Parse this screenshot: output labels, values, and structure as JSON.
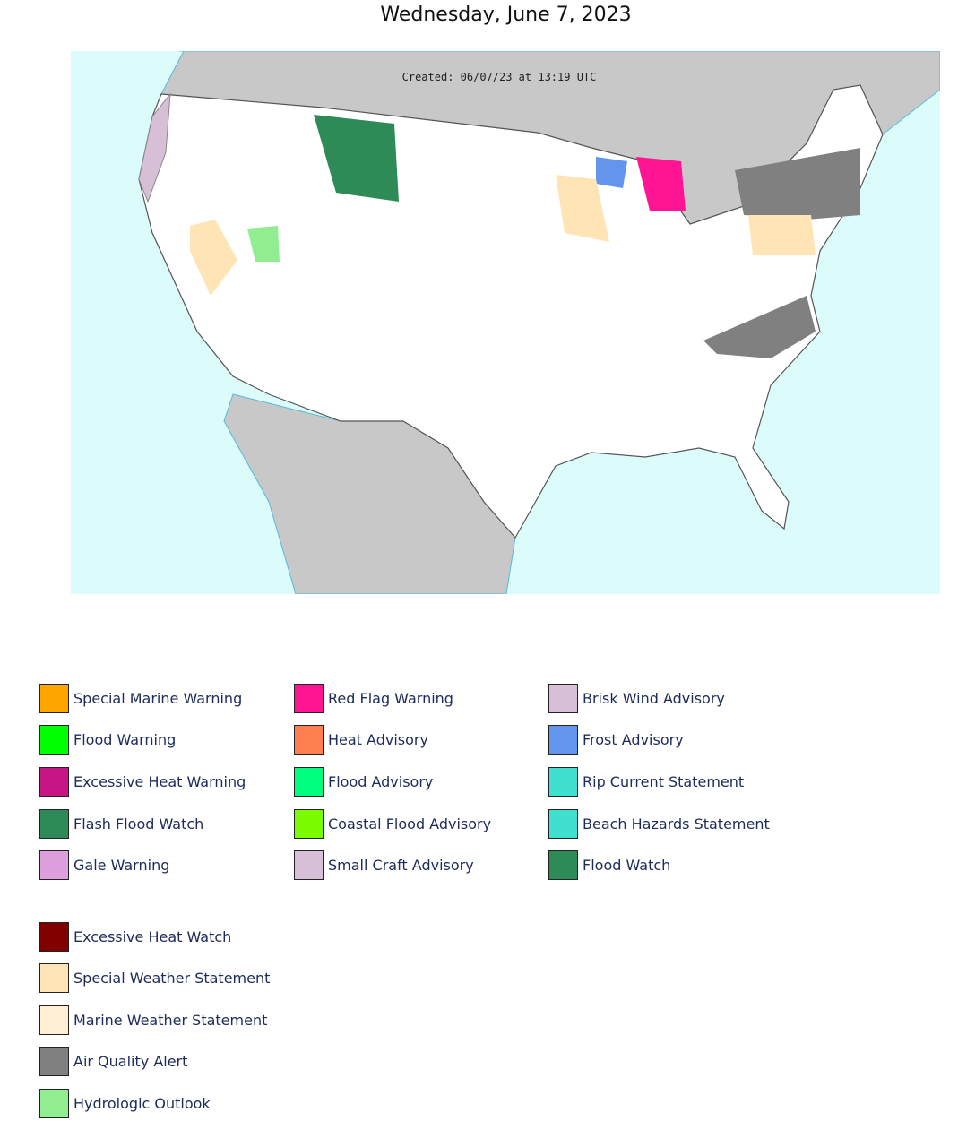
{
  "header": {
    "date": "Wednesday, June 7, 2023"
  },
  "map": {
    "created": "Created: 06/07/23 at 13:19 UTC"
  },
  "legend": {
    "columns": [
      [
        {
          "label": "Special Marine Warning",
          "color": "#FFA500"
        },
        {
          "label": "Flood Warning",
          "color": "#00FF00"
        },
        {
          "label": "Excessive Heat Warning",
          "color": "#C71585"
        },
        {
          "label": "Flash Flood Watch",
          "color": "#2E8B57"
        },
        {
          "label": "Gale Warning",
          "color": "#DDA0DD"
        }
      ],
      [
        {
          "label": "Red Flag Warning",
          "color": "#FF1493"
        },
        {
          "label": "Heat Advisory",
          "color": "#FF7F50"
        },
        {
          "label": "Flood Advisory",
          "color": "#00FF7F"
        },
        {
          "label": "Coastal Flood Advisory",
          "color": "#7CFC00"
        },
        {
          "label": "Small Craft Advisory",
          "color": "#D8BFD8"
        }
      ],
      [
        {
          "label": "Brisk Wind Advisory",
          "color": "#D8BFD8"
        },
        {
          "label": "Frost Advisory",
          "color": "#6495ED"
        },
        {
          "label": "Rip Current Statement",
          "color": "#40E0D0"
        },
        {
          "label": "Beach Hazards Statement",
          "color": "#40E0D0"
        },
        {
          "label": "Flood Watch",
          "color": "#2E8B57"
        }
      ]
    ],
    "extra": [
      {
        "label": "Excessive Heat Watch",
        "color": "#800000"
      },
      {
        "label": "Special Weather Statement",
        "color": "#FFE4B5"
      },
      {
        "label": "Marine Weather Statement",
        "color": "#FFEFD5"
      },
      {
        "label": "Air Quality Alert",
        "color": "#808080"
      },
      {
        "label": "Hydrologic Outlook",
        "color": "#90EE90"
      }
    ]
  }
}
